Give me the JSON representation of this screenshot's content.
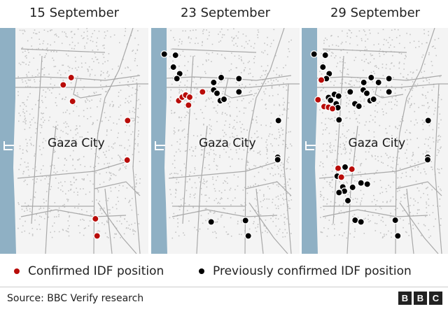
{
  "panels": [
    {
      "title": "15 September",
      "label": "Gaza City"
    },
    {
      "title": "23 September",
      "label": "Gaza City"
    },
    {
      "title": "29 September",
      "label": "Gaza City"
    }
  ],
  "legend": {
    "confirmed": {
      "label": "Confirmed IDF position",
      "color": "#b80c09"
    },
    "previous": {
      "label": "Previously confirmed IDF position",
      "color": "#000000"
    }
  },
  "colors": {
    "sea": "#8fb0c4",
    "land": "#f4f4f4",
    "roads": "#a9a9a9"
  },
  "footer": {
    "source": "Source: BBC Verify research",
    "logo": [
      "B",
      "B",
      "C"
    ]
  }
}
